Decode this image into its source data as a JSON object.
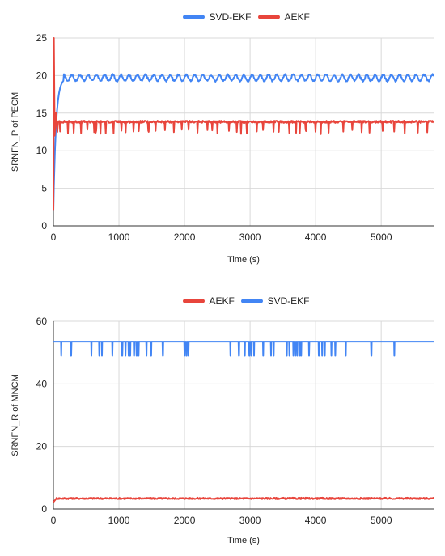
{
  "chart_data": [
    {
      "type": "line",
      "xlabel": "Time (s)",
      "ylabel": "SRNFN_P of PECM",
      "xlim": [
        0,
        5800
      ],
      "ylim": [
        0,
        25
      ],
      "xticks": [
        "0",
        "1000",
        "2000",
        "3000",
        "4000",
        "5000"
      ],
      "yticks": [
        "0",
        "5",
        "10",
        "15",
        "20",
        "25"
      ],
      "grid": true,
      "legend_position": "top",
      "legend": [
        "SVD-EKF",
        "AEKF"
      ],
      "series": [
        {
          "name": "SVD-EKF",
          "color": "#4285f4",
          "profile": {
            "start": 2,
            "rise_time": 160,
            "level": 19.7,
            "oscillation_amplitude": 0.4,
            "oscillation_period": 125
          }
        },
        {
          "name": "AEKF",
          "color": "#e8453c",
          "profile": {
            "initial_spike": 25,
            "level": 14,
            "dip_level": 12.5,
            "dip_times": [
              100,
              220,
              310,
              420,
              520,
              620,
              650,
              720,
              800,
              920,
              1040,
              1100,
              1220,
              1300,
              1450,
              1560,
              1700,
              1840,
              1960,
              2060,
              2200,
              2350,
              2420,
              2500,
              2680,
              2800,
              2860,
              2950,
              3100,
              3200,
              3360,
              3440,
              3600,
              3700,
              3760,
              3850,
              4000,
              4080,
              4200,
              4420,
              4560,
              4700,
              4820,
              5020,
              5200,
              5360,
              5560,
              5700
            ]
          }
        }
      ]
    },
    {
      "type": "line",
      "xlabel": "Time (s)",
      "ylabel": "SRNFN_R of MNCM",
      "xlim": [
        0,
        5800
      ],
      "ylim": [
        0,
        60
      ],
      "xticks": [
        "0",
        "1000",
        "2000",
        "3000",
        "4000",
        "5000"
      ],
      "yticks": [
        "0",
        "20",
        "40",
        "60"
      ],
      "grid": true,
      "legend_position": "top",
      "legend": [
        "AEKF",
        "SVD-EKF"
      ],
      "series": [
        {
          "name": "AEKF",
          "color": "#e8453c",
          "profile": {
            "start": 2.2,
            "level": 3.4,
            "noise": 0.25
          }
        },
        {
          "name": "SVD-EKF",
          "color": "#4285f4",
          "profile": {
            "level": 53.5,
            "dip_level": 49,
            "dip_times": [
              120,
              270,
              580,
              700,
              740,
              900,
              1050,
              1100,
              1150,
              1170,
              1230,
              1270,
              1300,
              1420,
              1490,
              1670,
              2000,
              2030,
              2060,
              2700,
              2830,
              2920,
              2990,
              3020,
              3060,
              3200,
              3320,
              3360,
              3560,
              3600,
              3660,
              3690,
              3720,
              3760,
              3780,
              3900,
              4050,
              4100,
              4140,
              4240,
              4300,
              4460,
              4850,
              5200
            ]
          }
        }
      ]
    }
  ]
}
